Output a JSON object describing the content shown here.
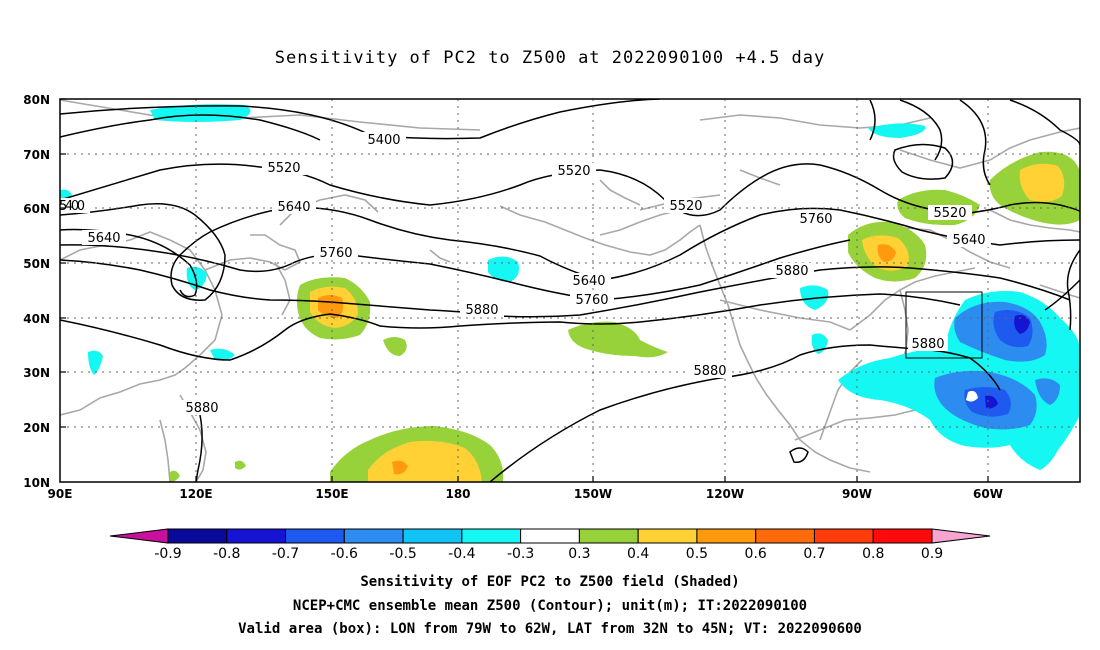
{
  "title": "Sensitivity of PC2 to Z500 at 2022090100 +4.5 day",
  "lat_ticks": [
    "80N",
    "70N",
    "60N",
    "50N",
    "40N",
    "30N",
    "20N",
    "10N"
  ],
  "lon_ticks": [
    "90E",
    "120E",
    "150E",
    "180",
    "150W",
    "120W",
    "90W",
    "60W"
  ],
  "contour_labels": [
    "5400",
    "5520",
    "5520",
    "5520",
    "5520",
    "5640",
    "5640",
    "5640",
    "5640",
    "5760",
    "5760",
    "5760",
    "5880",
    "5880",
    "5880",
    "5880",
    "5880",
    "5400"
  ],
  "colorbar": {
    "labels": [
      "-0.9",
      "-0.8",
      "-0.7",
      "-0.6",
      "-0.5",
      "-0.4",
      "-0.3",
      "0.3",
      "0.4",
      "0.5",
      "0.6",
      "0.7",
      "0.8",
      "0.9"
    ],
    "colors": [
      "#c8109c",
      "#0a0a9a",
      "#1414d2",
      "#1e5af0",
      "#2d8cf0",
      "#12c3f5",
      "#15f7f2",
      "#ffffff",
      "#97d23a",
      "#ffd135",
      "#ff9a0e",
      "#ff6a0a",
      "#ff3c0a",
      "#ff0a0a",
      "#f7a5d0"
    ]
  },
  "caption": {
    "line1": "Sensitivity of EOF PC2 to Z500 field (Shaded)",
    "line2": "NCEP+CMC ensemble mean Z500 (Contour); unit(m); IT:2022090100",
    "line3": "Valid area (box): LON from 79W to 62W, LAT from 32N to 45N; VT: 2022090600"
  }
}
